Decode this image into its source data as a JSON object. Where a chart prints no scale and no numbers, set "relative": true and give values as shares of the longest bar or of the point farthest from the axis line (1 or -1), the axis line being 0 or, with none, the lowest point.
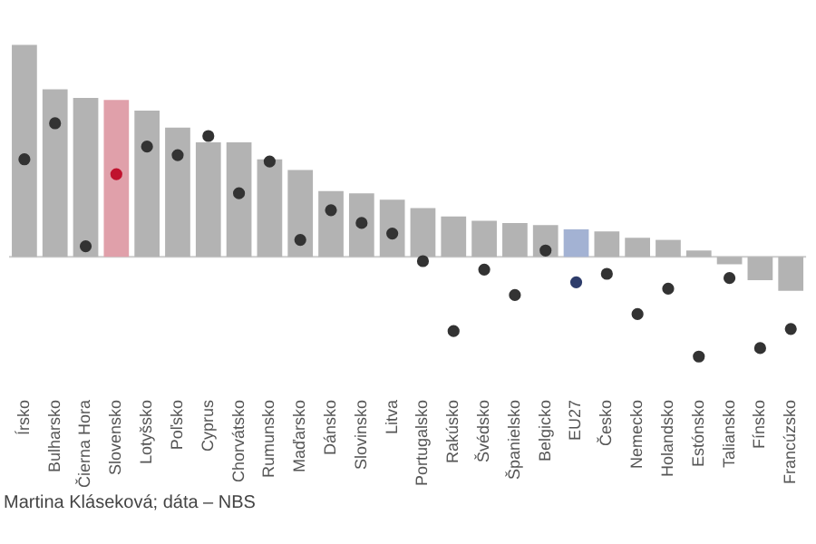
{
  "chart_data": {
    "type": "bar",
    "relative": true,
    "legend": false,
    "categories": [
      "Írsko",
      "Bulharsko",
      "Čierna Hora",
      "Slovensko",
      "Lotyšsko",
      "Poľsko",
      "Cyprus",
      "Chorvátsko",
      "Rumunsko",
      "Maďarsko",
      "Dánsko",
      "Slovinsko",
      "Litva",
      "Portugalsko",
      "Rakúsko",
      "Švédsko",
      "Španielsko",
      "Belgicko",
      "EU27",
      "Česko",
      "Nemecko",
      "Holandsko",
      "Estónsko",
      "Taliansko",
      "Fínsko",
      "Francúzsko"
    ],
    "series": [
      {
        "colors": [
          "#b3b3b3",
          "#b3b3b3",
          "#b3b3b3",
          "#e0a0aa",
          "#b3b3b3",
          "#b3b3b3",
          "#b3b3b3",
          "#b3b3b3",
          "#b3b3b3",
          "#b3b3b3",
          "#b3b3b3",
          "#b3b3b3",
          "#b3b3b3",
          "#b3b3b3",
          "#b3b3b3",
          "#b3b3b3",
          "#b3b3b3",
          "#b3b3b3",
          "#a3b2d3",
          "#b3b3b3",
          "#b3b3b3",
          "#b3b3b3",
          "#b3b3b3",
          "#b3b3b3",
          "#b3b3b3",
          "#b3b3b3"
        ],
        "values": [
          1,
          0.79,
          0.75,
          0.74,
          0.69,
          0.61,
          0.54,
          0.54,
          0.46,
          0.41,
          0.31,
          0.3,
          0.27,
          0.23,
          0.19,
          0.17,
          0.16,
          0.15,
          0.13,
          0.12,
          0.09,
          0.08,
          0.03,
          -0.035,
          -0.11,
          -0.16
        ]
      },
      {
        "type": "scatter",
        "marker": "circle",
        "x": [
          "Írsko",
          "Bulharsko",
          "Čierna Hora",
          "Slovensko",
          "Lotyšsko",
          "Poľsko",
          "Cyprus",
          "Chorvátsko",
          "Rumunsko",
          "Maďarsko",
          "Dánsko",
          "Slovinsko",
          "Litva",
          "Portugalsko",
          "Rakúsko",
          "Švédsko",
          "Španielsko",
          "Belgicko",
          "EU27",
          "Česko",
          "Nemecko",
          "Holandsko",
          "Estónsko",
          "Taliansko",
          "Fínsko",
          "Francúzsko"
        ],
        "colors": [
          "#333333",
          "#333333",
          "#333333",
          "#c0122e",
          "#333333",
          "#333333",
          "#333333",
          "#333333",
          "#333333",
          "#333333",
          "#333333",
          "#333333",
          "#333333",
          "#333333",
          "#333333",
          "#333333",
          "#333333",
          "#333333",
          "#2e3d6b",
          "#333333",
          "#333333",
          "#333333",
          "#333333",
          "#333333",
          "#333333",
          "#333333"
        ],
        "values": [
          0.46,
          0.63,
          0.05,
          0.39,
          0.52,
          0.48,
          0.57,
          0.3,
          0.45,
          0.08,
          0.22,
          0.16,
          0.11,
          -0.02,
          -0.35,
          -0.06,
          -0.18,
          0.03,
          -0.12,
          -0.08,
          -0.27,
          -0.15,
          -0.47,
          -0.1,
          -0.43,
          -0.34
        ]
      }
    ],
    "annotations": [
      "Martina Kláseková; dáta – NBS"
    ]
  }
}
